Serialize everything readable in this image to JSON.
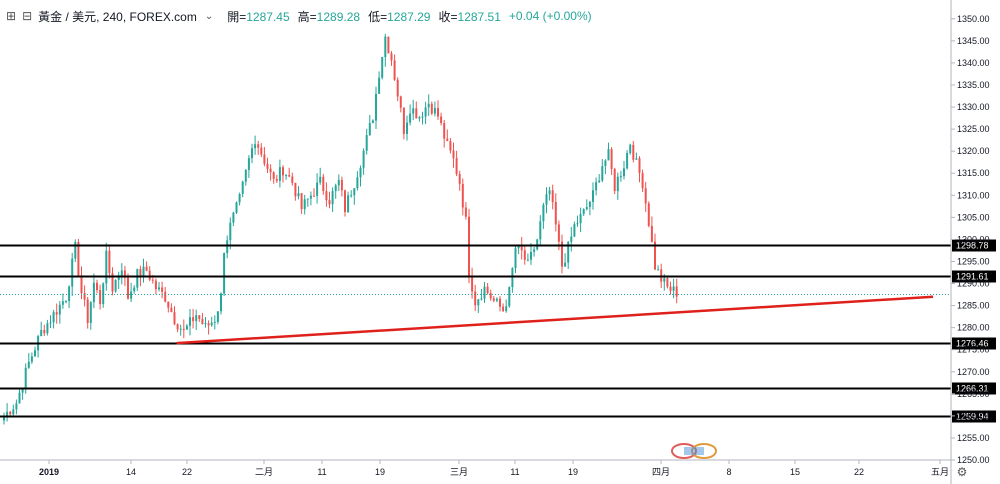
{
  "legend": {
    "symbol": "黃金 / 美元, 240, FOREX.com",
    "open_label": "開",
    "open": "1287.45",
    "high_label": "高",
    "high": "1289.28",
    "low_label": "低",
    "low": "1287.29",
    "close_label": "收",
    "close": "1287.51",
    "change": "+0.04 (+0.00%)"
  },
  "colors": {
    "up": "#26a69a",
    "down": "#ef5350",
    "trendline": "#e0201b",
    "hline": "#000000",
    "price_line": "#26a69a"
  },
  "icons": {
    "expand": "expand-icon",
    "collapse": "chevron-icon",
    "settings": "gear-icon",
    "watermark": "tradingview-logo"
  },
  "chart_data": {
    "type": "candlestick",
    "title": "",
    "xlabel": "",
    "ylabel": "",
    "ylim": [
      1250,
      1352
    ],
    "yticks": [
      1250,
      1255,
      1260,
      1265,
      1270,
      1275,
      1280,
      1285,
      1290,
      1295,
      1300,
      1305,
      1310,
      1315,
      1320,
      1325,
      1330,
      1335,
      1340,
      1345,
      1350
    ],
    "x_tick_labels": [
      "2019",
      "14",
      "22",
      "二月",
      "11",
      "19",
      "三月",
      "11",
      "19",
      "四月",
      "8",
      "15",
      "22",
      "五月"
    ],
    "horizontal_levels": [
      {
        "value": 1298.78,
        "label": "1298.78"
      },
      {
        "value": 1291.61,
        "label": "1291.61"
      },
      {
        "value": 1276.46,
        "label": "1276.46"
      },
      {
        "value": 1266.31,
        "label": "1266.31"
      },
      {
        "value": 1259.94,
        "label": "1259.94"
      }
    ],
    "current_price": 1287.51,
    "trendline": {
      "from": {
        "bar": 56,
        "price": 1276.5
      },
      "to": {
        "bar": 300,
        "price": 1287.0
      }
    },
    "price_path": [
      [
        0,
        1260
      ],
      [
        4,
        1263
      ],
      [
        8,
        1272
      ],
      [
        12,
        1279
      ],
      [
        16,
        1283
      ],
      [
        20,
        1287
      ],
      [
        23,
        1298
      ],
      [
        25,
        1288
      ],
      [
        27,
        1282
      ],
      [
        29,
        1290
      ],
      [
        31,
        1286
      ],
      [
        33,
        1296
      ],
      [
        35,
        1289
      ],
      [
        38,
        1294
      ],
      [
        40,
        1287
      ],
      [
        43,
        1292
      ],
      [
        46,
        1293
      ],
      [
        49,
        1289
      ],
      [
        52,
        1287
      ],
      [
        55,
        1282
      ],
      [
        58,
        1279
      ],
      [
        62,
        1283
      ],
      [
        65,
        1280
      ],
      [
        68,
        1282
      ],
      [
        70,
        1287
      ],
      [
        71,
        1298
      ],
      [
        73,
        1303
      ],
      [
        76,
        1309
      ],
      [
        79,
        1318
      ],
      [
        81,
        1323
      ],
      [
        84,
        1318
      ],
      [
        87,
        1313
      ],
      [
        90,
        1316
      ],
      [
        93,
        1313
      ],
      [
        96,
        1307
      ],
      [
        99,
        1310
      ],
      [
        102,
        1313
      ],
      [
        105,
        1309
      ],
      [
        108,
        1313
      ],
      [
        110,
        1307
      ],
      [
        113,
        1313
      ],
      [
        116,
        1320
      ],
      [
        119,
        1328
      ],
      [
        121,
        1338
      ],
      [
        123,
        1346
      ],
      [
        125,
        1341
      ],
      [
        127,
        1333
      ],
      [
        129,
        1325
      ],
      [
        131,
        1330
      ],
      [
        134,
        1328
      ],
      [
        137,
        1331
      ],
      [
        140,
        1328
      ],
      [
        143,
        1321
      ],
      [
        145,
        1318
      ],
      [
        147,
        1313
      ],
      [
        149,
        1304
      ],
      [
        150,
        1293
      ],
      [
        152,
        1286
      ],
      [
        155,
        1289
      ],
      [
        158,
        1286
      ],
      [
        161,
        1284
      ],
      [
        163,
        1288
      ],
      [
        165,
        1298
      ],
      [
        167,
        1297
      ],
      [
        169,
        1294
      ],
      [
        172,
        1300
      ],
      [
        174,
        1307
      ],
      [
        176,
        1311
      ],
      [
        178,
        1303
      ],
      [
        180,
        1294
      ],
      [
        182,
        1298
      ],
      [
        184,
        1303
      ],
      [
        187,
        1306
      ],
      [
        190,
        1310
      ],
      [
        193,
        1317
      ],
      [
        195,
        1319
      ],
      [
        197,
        1312
      ],
      [
        200,
        1317
      ],
      [
        202,
        1322
      ],
      [
        204,
        1317
      ],
      [
        206,
        1313
      ],
      [
        208,
        1304
      ],
      [
        210,
        1294
      ],
      [
        212,
        1291
      ],
      [
        214,
        1289
      ],
      [
        217,
        1288
      ]
    ]
  }
}
